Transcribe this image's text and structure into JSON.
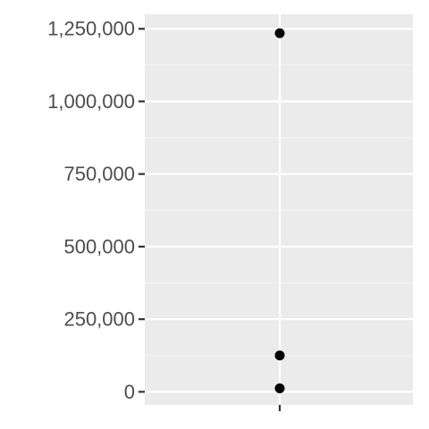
{
  "chart_data": {
    "type": "scatter",
    "title": "",
    "xlabel": "",
    "ylabel": "",
    "x_ticks": [
      ""
    ],
    "y_ticks": [
      0,
      250000,
      500000,
      750000,
      1000000,
      1250000
    ],
    "y_tick_labels": [
      "0",
      "250,000",
      "500,000",
      "750,000",
      "1,000,000",
      "1,250,000"
    ],
    "ylim": [
      -45000,
      1300000
    ],
    "grid": true,
    "legend": "none",
    "series": [
      {
        "x": [
          1,
          1,
          1
        ],
        "y": [
          1235000,
          125000,
          12000
        ]
      }
    ],
    "colors": {
      "panel_bg": "#ebebeb",
      "grid_major": "#ffffff",
      "grid_minor": "#f5f5f5",
      "point": "#000000",
      "tick": "#333333",
      "tick_label": "#4d4d4d"
    }
  }
}
